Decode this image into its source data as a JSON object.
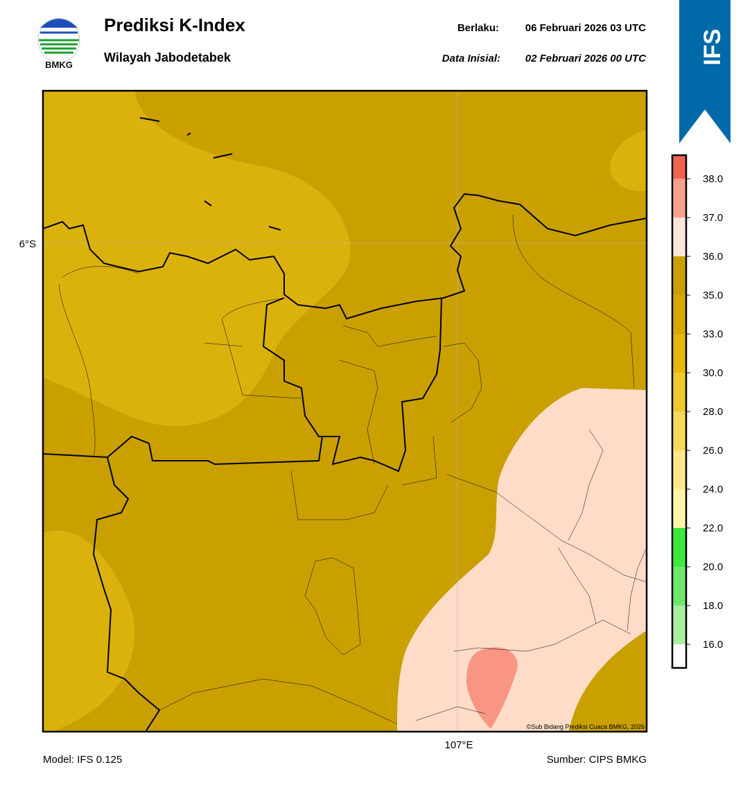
{
  "header": {
    "logo_text": "BMKG",
    "title": "Prediksi K-Index",
    "subtitle": "Wilayah Jabodetabek",
    "valid_label": "Berlaku:",
    "valid_time": "06 Februari 2026 03 UTC",
    "init_label": "Data Inisial:",
    "init_time": "02 Februari 2026 00 UTC",
    "badge": "IFS"
  },
  "map": {
    "lat_label": "6°S",
    "lon_label": "107°E",
    "credit": "©Sub Bidang Prediksi Cuaca BMKG, 2026"
  },
  "colorbar": {
    "ticks": [
      {
        "value": 16,
        "label": "16.0"
      },
      {
        "value": 18,
        "label": "18.0"
      },
      {
        "value": 20,
        "label": "20.0"
      },
      {
        "value": 22,
        "label": "22.0"
      },
      {
        "value": 24,
        "label": "24.0"
      },
      {
        "value": 26,
        "label": "26.0"
      },
      {
        "value": 28,
        "label": "28.0"
      },
      {
        "value": 30,
        "label": "30.0"
      },
      {
        "value": 33,
        "label": "33.0"
      },
      {
        "value": 35,
        "label": "35.0"
      },
      {
        "value": 36,
        "label": "36.0"
      },
      {
        "value": 37,
        "label": "37.0"
      },
      {
        "value": 38,
        "label": "38.0"
      }
    ],
    "colors": [
      "#ffffff",
      "#a8f0a0",
      "#6ee86a",
      "#3ee83e",
      "#fff5a8",
      "#ffe88a",
      "#f7d85a",
      "#efc82e",
      "#e6b80a",
      "#d8a800",
      "#c9a000",
      "#ffe4d8",
      "#f7a08e",
      "#ee6450",
      "#e4312a"
    ]
  },
  "footer": {
    "model": "Model: IFS 0.125",
    "source": "Sumber: CIPS BMKG"
  }
}
